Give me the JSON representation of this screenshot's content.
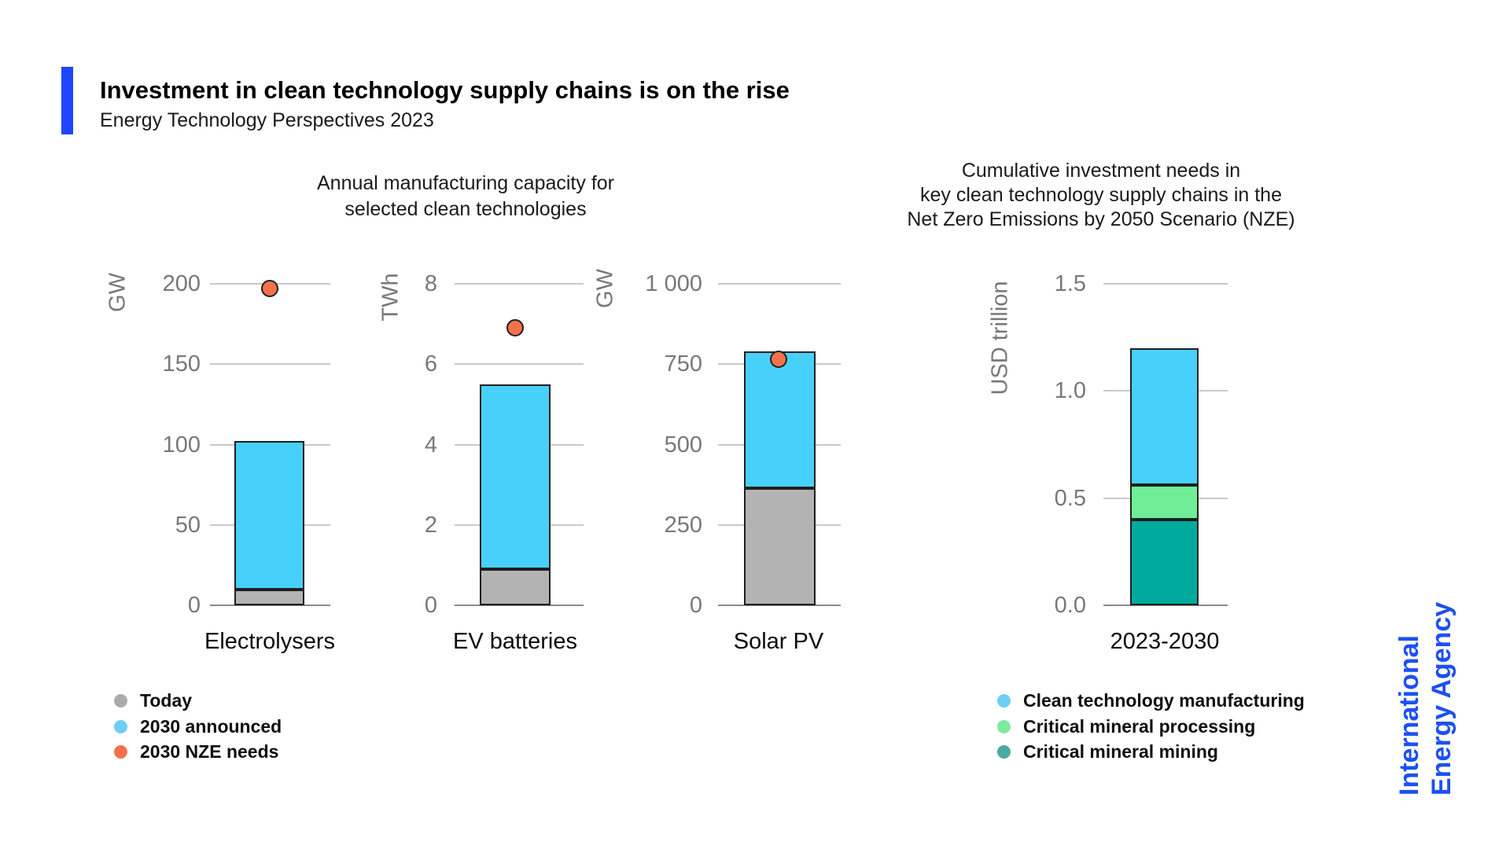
{
  "header": {
    "title": "Investment in clean technology supply chains is on the rise",
    "subtitle": "Energy Technology Perspectives 2023"
  },
  "panel_titles": {
    "left_lines": [
      "Annual manufacturing capacity for",
      "selected clean technologies"
    ],
    "right_lines": [
      "Cumulative investment needs in",
      "key clean technology supply chains in the",
      "Net Zero Emissions by 2050 Scenario (NZE)"
    ]
  },
  "logo": {
    "line1": "International",
    "line2": "Energy Agency"
  },
  "colors": {
    "accent_blue": "#1e47ff",
    "logo_blue": "#1c50f2",
    "bar_blue": "#47d1fa",
    "bar_gray": "#b3b3b3",
    "marker_orange": "#f4724b",
    "mining_teal": "#00ab9e",
    "processing_green": "#6fee97",
    "legend_gray": "#ababab",
    "legend_blue": "#6ecef5",
    "legend_green": "#7fe99c",
    "legend_teal": "#4ba9a1",
    "gridline": "#c9c9c9",
    "baseline": "#8a8a8a"
  },
  "legend_left": [
    {
      "label": "Today",
      "color": "#ababab"
    },
    {
      "label": "2030 announced",
      "color": "#6ecef5"
    },
    {
      "label": "2030 NZE needs",
      "color": "#f4724b"
    }
  ],
  "legend_right": [
    {
      "label": "Clean technology manufacturing",
      "color": "#6ecef5"
    },
    {
      "label": "Critical mineral processing",
      "color": "#7fe99c"
    },
    {
      "label": "Critical mineral mining",
      "color": "#4ba9a1"
    }
  ],
  "chart_data": [
    {
      "type": "bar",
      "panel_title": "Annual manufacturing capacity for selected clean technologies",
      "category": "Electrolysers",
      "unit": "GW",
      "ylim": [
        0,
        200
      ],
      "yticks": [
        {
          "v": 200,
          "label": "200"
        },
        {
          "v": 150,
          "label": "150"
        },
        {
          "v": 100,
          "label": "100"
        },
        {
          "v": 50,
          "label": "50"
        },
        {
          "v": 0,
          "label": "0"
        }
      ],
      "segments": [
        {
          "name": "Today",
          "value": 10,
          "color": "#b3b3b3"
        },
        {
          "name": "2030 announced",
          "value": 92,
          "color": "#47d1fa"
        }
      ],
      "stack_total": 102,
      "marker": {
        "name": "2030 NZE needs",
        "value": 197,
        "color": "#f4724b"
      }
    },
    {
      "type": "bar",
      "panel_title": "Annual manufacturing capacity for selected clean technologies",
      "category": "EV batteries",
      "unit": "TWh",
      "ylim": [
        0,
        8
      ],
      "yticks": [
        {
          "v": 8,
          "label": "8"
        },
        {
          "v": 6,
          "label": "6"
        },
        {
          "v": 4,
          "label": "4"
        },
        {
          "v": 2,
          "label": "2"
        },
        {
          "v": 0,
          "label": "0"
        }
      ],
      "segments": [
        {
          "name": "Today",
          "value": 0.9,
          "color": "#b3b3b3"
        },
        {
          "name": "2030 announced",
          "value": 4.6,
          "color": "#47d1fa"
        }
      ],
      "stack_total": 5.5,
      "marker": {
        "name": "2030 NZE needs",
        "value": 6.9,
        "color": "#f4724b"
      }
    },
    {
      "type": "bar",
      "panel_title": "Annual manufacturing capacity for selected clean technologies",
      "category": "Solar PV",
      "unit": "GW",
      "ylim": [
        0,
        1000
      ],
      "yticks": [
        {
          "v": 1000,
          "label": "1 000"
        },
        {
          "v": 750,
          "label": "750"
        },
        {
          "v": 500,
          "label": "500"
        },
        {
          "v": 250,
          "label": "250"
        },
        {
          "v": 0,
          "label": "0"
        }
      ],
      "segments": [
        {
          "name": "Today",
          "value": 365,
          "color": "#b3b3b3"
        },
        {
          "name": "2030 announced",
          "value": 425,
          "color": "#47d1fa"
        }
      ],
      "stack_total": 790,
      "marker": {
        "name": "2030 NZE needs",
        "value": 765,
        "color": "#f4724b"
      }
    },
    {
      "type": "bar",
      "panel_title": "Cumulative investment needs in key clean technology supply chains in the Net Zero Emissions by 2050 Scenario (NZE)",
      "category": "2023-2030",
      "unit": "USD trillion",
      "ylim": [
        0,
        1.5
      ],
      "yticks": [
        {
          "v": 1.5,
          "label": "1.5"
        },
        {
          "v": 1.0,
          "label": "1.0"
        },
        {
          "v": 0.5,
          "label": "0.5"
        },
        {
          "v": 0.0,
          "label": "0.0"
        }
      ],
      "segments": [
        {
          "name": "Critical mineral mining",
          "value": 0.4,
          "color": "#00ab9e"
        },
        {
          "name": "Critical mineral processing",
          "value": 0.16,
          "color": "#6fee97"
        },
        {
          "name": "Clean technology manufacturing",
          "value": 0.64,
          "color": "#47d1fa"
        }
      ],
      "stack_total": 1.2,
      "marker": null
    }
  ]
}
